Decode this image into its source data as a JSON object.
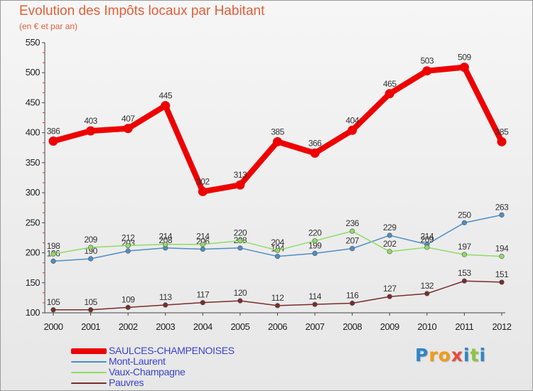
{
  "chart_data": {
    "type": "line",
    "title": "Evolution des Impôts locaux par Habitant",
    "subtitle": "(en € et par an)",
    "categories": [
      "2000",
      "2001",
      "2002",
      "2003",
      "2004",
      "2005",
      "2006",
      "2007",
      "2008",
      "2009",
      "2010",
      "2011",
      "2012"
    ],
    "ylim": [
      100,
      550
    ],
    "yticks": [
      100,
      150,
      200,
      250,
      300,
      350,
      400,
      450,
      500,
      550
    ],
    "grid": false,
    "series": [
      {
        "name": "SAULCES-CHAMPENOISES",
        "color": "#ee0000",
        "emphasis": "bold",
        "values": [
          386,
          403,
          407,
          445,
          302,
          313,
          385,
          366,
          404,
          465,
          503,
          509,
          385
        ]
      },
      {
        "name": "Mont-Laurent",
        "color": "#4d8ec7",
        "emphasis": "normal",
        "values": [
          186,
          190,
          203,
          208,
          206,
          208,
          194,
          199,
          207,
          229,
          214,
          250,
          263
        ]
      },
      {
        "name": "Vaux-Champagne",
        "color": "#8fdc63",
        "emphasis": "normal",
        "values": [
          198,
          209,
          212,
          214,
          214,
          220,
          204,
          220,
          236,
          202,
          209,
          197,
          194
        ]
      },
      {
        "name": "Pauvres",
        "color": "#7a2c2c",
        "emphasis": "normal",
        "values": [
          105,
          105,
          109,
          113,
          117,
          120,
          112,
          114,
          116,
          127,
          132,
          153,
          151
        ]
      }
    ]
  },
  "brand": {
    "letters": [
      "P",
      "r",
      "o",
      "x",
      "i",
      "t",
      "i"
    ],
    "colors": [
      "#2e86c9",
      "#f39c12",
      "#f39c12",
      "#e74c3c",
      "#2e86c9",
      "#8dc63f",
      "#2e86c9"
    ]
  }
}
